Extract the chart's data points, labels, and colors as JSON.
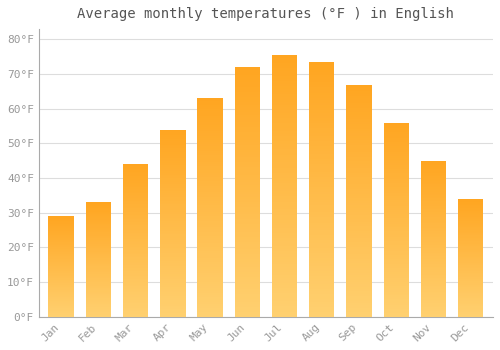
{
  "title": "Average monthly temperatures (°F ) in English",
  "months": [
    "Jan",
    "Feb",
    "Mar",
    "Apr",
    "May",
    "Jun",
    "Jul",
    "Aug",
    "Sep",
    "Oct",
    "Nov",
    "Dec"
  ],
  "values": [
    29,
    33,
    44,
    54,
    63,
    72,
    75.5,
    73.5,
    67,
    56,
    45,
    34
  ],
  "bar_color": "#FFA520",
  "bar_color_light": "#FFD070",
  "yticks": [
    0,
    10,
    20,
    30,
    40,
    50,
    60,
    70,
    80
  ],
  "ylim": [
    0,
    83
  ],
  "background_color": "#FFFFFF",
  "grid_color": "#DDDDDD",
  "title_fontsize": 10,
  "tick_fontsize": 8,
  "tick_color": "#999999"
}
